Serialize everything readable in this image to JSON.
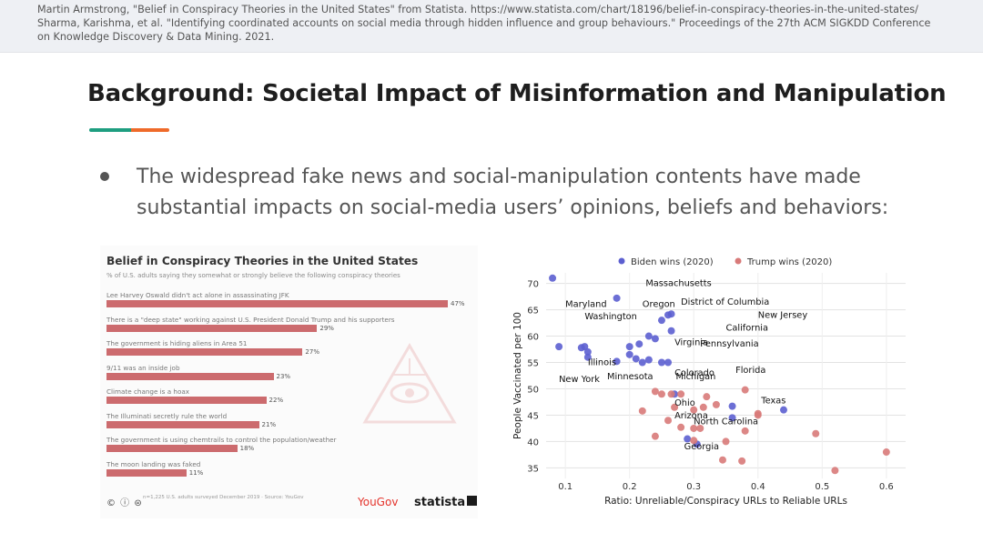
{
  "references": {
    "line1": "Martin Armstrong, \"Belief in Conspiracy Theories in the United States\" from Statista. https://www.statista.com/chart/18196/belief-in-conspiracy-theories-in-the-united-states/",
    "line2": "Sharma, Karishma, et al. \"Identifying coordinated accounts on social media through hidden influence and group behaviours.\" Proceedings of the 27th ACM SIGKDD Conference",
    "line3": "on Knowledge Discovery & Data Mining. 2021."
  },
  "slide": {
    "title": "Background: Societal Impact of Misinformation and Manipulation",
    "bullet": "The widespread fake news and social-manipulation contents have made substantial impacts on social-media users’ opinions, beliefs and behaviors:"
  },
  "colors": {
    "accent_green": "#1e9e80",
    "accent_orange": "#ef6a2a",
    "bar": "#cc6b6e",
    "biden": "#5c5fd0",
    "trump": "#d87a79"
  },
  "statista_chart": {
    "title": "Belief in Conspiracy Theories in the United States",
    "subtitle": "% of U.S. adults saying they somewhat or strongly believe the following conspiracy theories",
    "items": [
      {
        "label": "Lee Harvey Oswald didn't act alone in assassinating JFK",
        "value": 47,
        "value_label": "47%"
      },
      {
        "label": "There is a \"deep state\" working against U.S. President Donald Trump and his supporters",
        "value": 29,
        "value_label": "29%"
      },
      {
        "label": "The government is hiding aliens in Area 51",
        "value": 27,
        "value_label": "27%"
      },
      {
        "label": "9/11 was an inside job",
        "value": 23,
        "value_label": "23%"
      },
      {
        "label": "Climate change is a hoax",
        "value": 22,
        "value_label": "22%"
      },
      {
        "label": "The Illuminati secretly rule the world",
        "value": 21,
        "value_label": "21%"
      },
      {
        "label": "The government is using chemtrails to control the population/weather",
        "value": 18,
        "value_label": "18%"
      },
      {
        "label": "The moon landing was faked",
        "value": 11,
        "value_label": "11%"
      }
    ],
    "footer_note": "n=1,225 U.S. adults surveyed December 2019",
    "footer_source": "Source: YouGov",
    "cc_label": "© ⓘ ⊜",
    "yougov_label": "YouGov",
    "statista_label": "statista"
  },
  "chart_data": {
    "type": "scatter",
    "xlabel": "Ratio: Unreliable/Conspiracy URLs to Reliable URLs",
    "ylabel": "People Vaccinated per 100",
    "xlim": [
      0.07,
      0.63
    ],
    "ylim": [
      33,
      72
    ],
    "xticks": [
      0.1,
      0.2,
      0.3,
      0.4,
      0.5,
      0.6
    ],
    "yticks": [
      35,
      40,
      45,
      50,
      55,
      60,
      65,
      70
    ],
    "legend": [
      {
        "name": "Biden wins (2020)"
      },
      {
        "name": "Trump wins (2020)"
      }
    ],
    "series": [
      {
        "name": "Biden wins (2020)",
        "points": [
          [
            0.08,
            71
          ],
          [
            0.18,
            67.2
          ],
          [
            0.26,
            64
          ],
          [
            0.265,
            64.2
          ],
          [
            0.25,
            63
          ],
          [
            0.265,
            61
          ],
          [
            0.24,
            59.5
          ],
          [
            0.23,
            60
          ],
          [
            0.215,
            58.5
          ],
          [
            0.2,
            58
          ],
          [
            0.13,
            58
          ],
          [
            0.09,
            58
          ],
          [
            0.135,
            57
          ],
          [
            0.135,
            56
          ],
          [
            0.2,
            56.5
          ],
          [
            0.21,
            55.7
          ],
          [
            0.22,
            55
          ],
          [
            0.25,
            55
          ],
          [
            0.26,
            55
          ],
          [
            0.125,
            57.8
          ],
          [
            0.18,
            55.2
          ],
          [
            0.23,
            55.5
          ],
          [
            0.27,
            49
          ],
          [
            0.36,
            46.7
          ],
          [
            0.44,
            46
          ],
          [
            0.36,
            44.5
          ],
          [
            0.29,
            40.5
          ],
          [
            0.305,
            39.5
          ]
        ]
      },
      {
        "name": "Trump wins (2020)",
        "points": [
          [
            0.24,
            49.5
          ],
          [
            0.25,
            49
          ],
          [
            0.265,
            49
          ],
          [
            0.28,
            49
          ],
          [
            0.32,
            48.5
          ],
          [
            0.38,
            49.8
          ],
          [
            0.27,
            46.5
          ],
          [
            0.3,
            46
          ],
          [
            0.315,
            46.5
          ],
          [
            0.335,
            47
          ],
          [
            0.4,
            45
          ],
          [
            0.4,
            45.3
          ],
          [
            0.26,
            44
          ],
          [
            0.28,
            42.7
          ],
          [
            0.3,
            42.5
          ],
          [
            0.31,
            42.5
          ],
          [
            0.38,
            42
          ],
          [
            0.49,
            41.5
          ],
          [
            0.24,
            41
          ],
          [
            0.22,
            45.8
          ],
          [
            0.35,
            40
          ],
          [
            0.345,
            36.5
          ],
          [
            0.375,
            36.3
          ],
          [
            0.6,
            38
          ],
          [
            0.52,
            34.5
          ],
          [
            0.3,
            40.2
          ]
        ]
      }
    ],
    "annotations": [
      {
        "label": "Massachusetts",
        "x": 0.225,
        "y": 69.5
      },
      {
        "label": "Maryland",
        "x": 0.1,
        "y": 65.5
      },
      {
        "label": "District of Columbia",
        "x": 0.28,
        "y": 66
      },
      {
        "label": "Oregon",
        "x": 0.22,
        "y": 65.5
      },
      {
        "label": "Washington",
        "x": 0.13,
        "y": 63.2
      },
      {
        "label": "New Jersey",
        "x": 0.4,
        "y": 63.5
      },
      {
        "label": "California",
        "x": 0.35,
        "y": 61
      },
      {
        "label": "Virginia",
        "x": 0.27,
        "y": 58.3
      },
      {
        "label": "Pennsylvania",
        "x": 0.31,
        "y": 58
      },
      {
        "label": "Illinois",
        "x": 0.135,
        "y": 54.5
      },
      {
        "label": "Colorado",
        "x": 0.27,
        "y": 52.5
      },
      {
        "label": "Michigan",
        "x": 0.272,
        "y": 51.8
      },
      {
        "label": "Florida",
        "x": 0.365,
        "y": 53
      },
      {
        "label": "New York",
        "x": 0.09,
        "y": 51.3
      },
      {
        "label": "Minnesota",
        "x": 0.165,
        "y": 51.8
      },
      {
        "label": "Ohio",
        "x": 0.27,
        "y": 46.8
      },
      {
        "label": "Texas",
        "x": 0.405,
        "y": 47.2
      },
      {
        "label": "Arizona",
        "x": 0.27,
        "y": 44.4
      },
      {
        "label": "North Carolina",
        "x": 0.3,
        "y": 43.3
      },
      {
        "label": "Georgia",
        "x": 0.285,
        "y": 38.5
      }
    ]
  }
}
